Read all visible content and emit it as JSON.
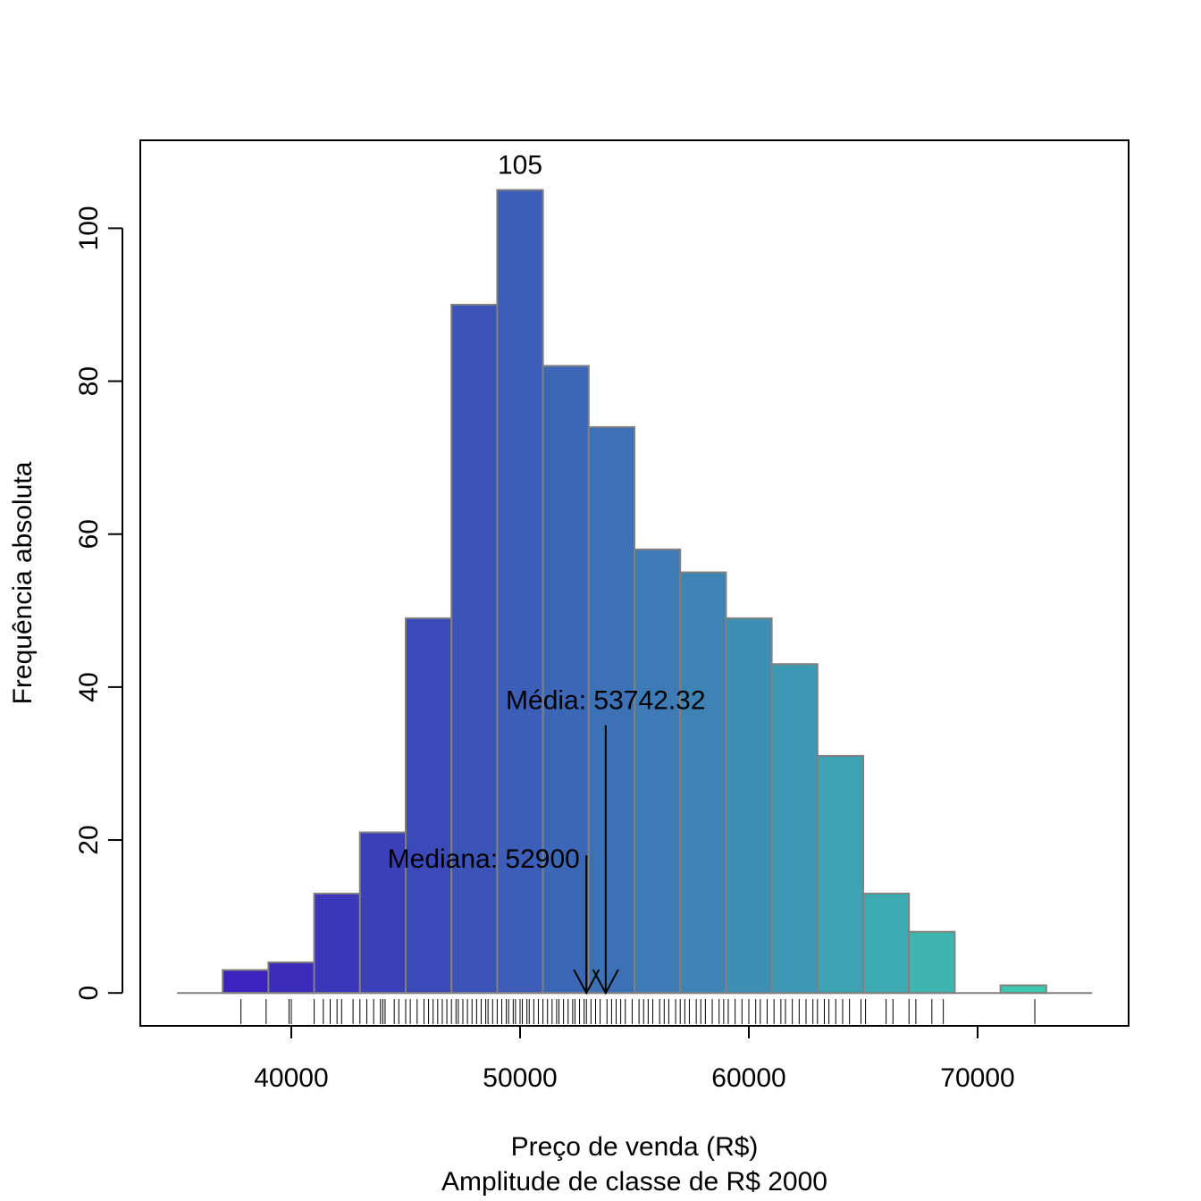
{
  "chart_data": {
    "type": "bar",
    "xlabel": "Preço de venda (R$)",
    "xlabel_line2": "Amplitude de classe de R$ 2000",
    "ylabel": "Frequência absoluta",
    "bin_width": 2000,
    "bins": [
      {
        "start": 37000,
        "end": 39000,
        "count": 3
      },
      {
        "start": 39000,
        "end": 41000,
        "count": 4
      },
      {
        "start": 41000,
        "end": 43000,
        "count": 13
      },
      {
        "start": 43000,
        "end": 45000,
        "count": 21
      },
      {
        "start": 45000,
        "end": 47000,
        "count": 49
      },
      {
        "start": 47000,
        "end": 49000,
        "count": 90
      },
      {
        "start": 49000,
        "end": 51000,
        "count": 105
      },
      {
        "start": 51000,
        "end": 53000,
        "count": 82
      },
      {
        "start": 53000,
        "end": 55000,
        "count": 74
      },
      {
        "start": 55000,
        "end": 57000,
        "count": 58
      },
      {
        "start": 57000,
        "end": 59000,
        "count": 55
      },
      {
        "start": 59000,
        "end": 61000,
        "count": 49
      },
      {
        "start": 61000,
        "end": 63000,
        "count": 43
      },
      {
        "start": 63000,
        "end": 65000,
        "count": 31
      },
      {
        "start": 65000,
        "end": 67000,
        "count": 13
      },
      {
        "start": 67000,
        "end": 69000,
        "count": 8
      },
      {
        "start": 69000,
        "end": 71000,
        "count": 0
      },
      {
        "start": 71000,
        "end": 73000,
        "count": 1
      }
    ],
    "xlim": [
      33400,
      76600
    ],
    "ylim": [
      -4.3,
      111.5
    ],
    "baseline_range": [
      35000,
      75000
    ],
    "x_ticks": [
      40000,
      50000,
      60000,
      70000
    ],
    "x_tick_labels": [
      "40000",
      "50000",
      "60000",
      "70000"
    ],
    "y_ticks": [
      0,
      20,
      40,
      60,
      80,
      100
    ],
    "y_tick_labels": [
      "0",
      "20",
      "40",
      "60",
      "80",
      "100"
    ],
    "max_label": "105",
    "max_label_x": 50000,
    "mean": 53742.32,
    "mean_label": "Média: 53742.32",
    "median": 52900,
    "median_label": "Mediana: 52900",
    "mean_arrow_top": 35,
    "median_arrow_top": 18,
    "bar_color_start": "#3c22bc",
    "bar_color_end": "#3dc9b0",
    "bar_border_color": "#808080",
    "rug": [
      37800,
      38900,
      39900,
      40000,
      41000,
      41400,
      41700,
      42000,
      42200,
      42700,
      43000,
      43300,
      43600,
      43900,
      44000,
      44100,
      44500,
      44700,
      45000,
      45200,
      45500,
      45800,
      46000,
      46200,
      46400,
      46600,
      46800,
      47000,
      47200,
      47300,
      47500,
      47700,
      47900,
      48100,
      48300,
      48500,
      48600,
      48800,
      49000,
      49200,
      49400,
      49500,
      49700,
      49800,
      50000,
      50100,
      50300,
      50400,
      50600,
      50800,
      51000,
      51200,
      51400,
      51600,
      51700,
      51900,
      52100,
      52300,
      52400,
      52600,
      52800,
      52900,
      53100,
      53300,
      53500,
      53800,
      54000,
      54200,
      54400,
      54600,
      54900,
      55200,
      55400,
      55600,
      55800,
      56100,
      56300,
      56500,
      56800,
      57000,
      57200,
      57400,
      57700,
      57900,
      58100,
      58400,
      58700,
      58900,
      59100,
      59400,
      59700,
      60000,
      60300,
      60500,
      60800,
      61100,
      61400,
      61600,
      61900,
      62200,
      62500,
      62800,
      63000,
      63300,
      63500,
      63800,
      64100,
      64400,
      64900,
      65100,
      66000,
      66300,
      67000,
      67300,
      68000,
      68500,
      72500
    ]
  }
}
